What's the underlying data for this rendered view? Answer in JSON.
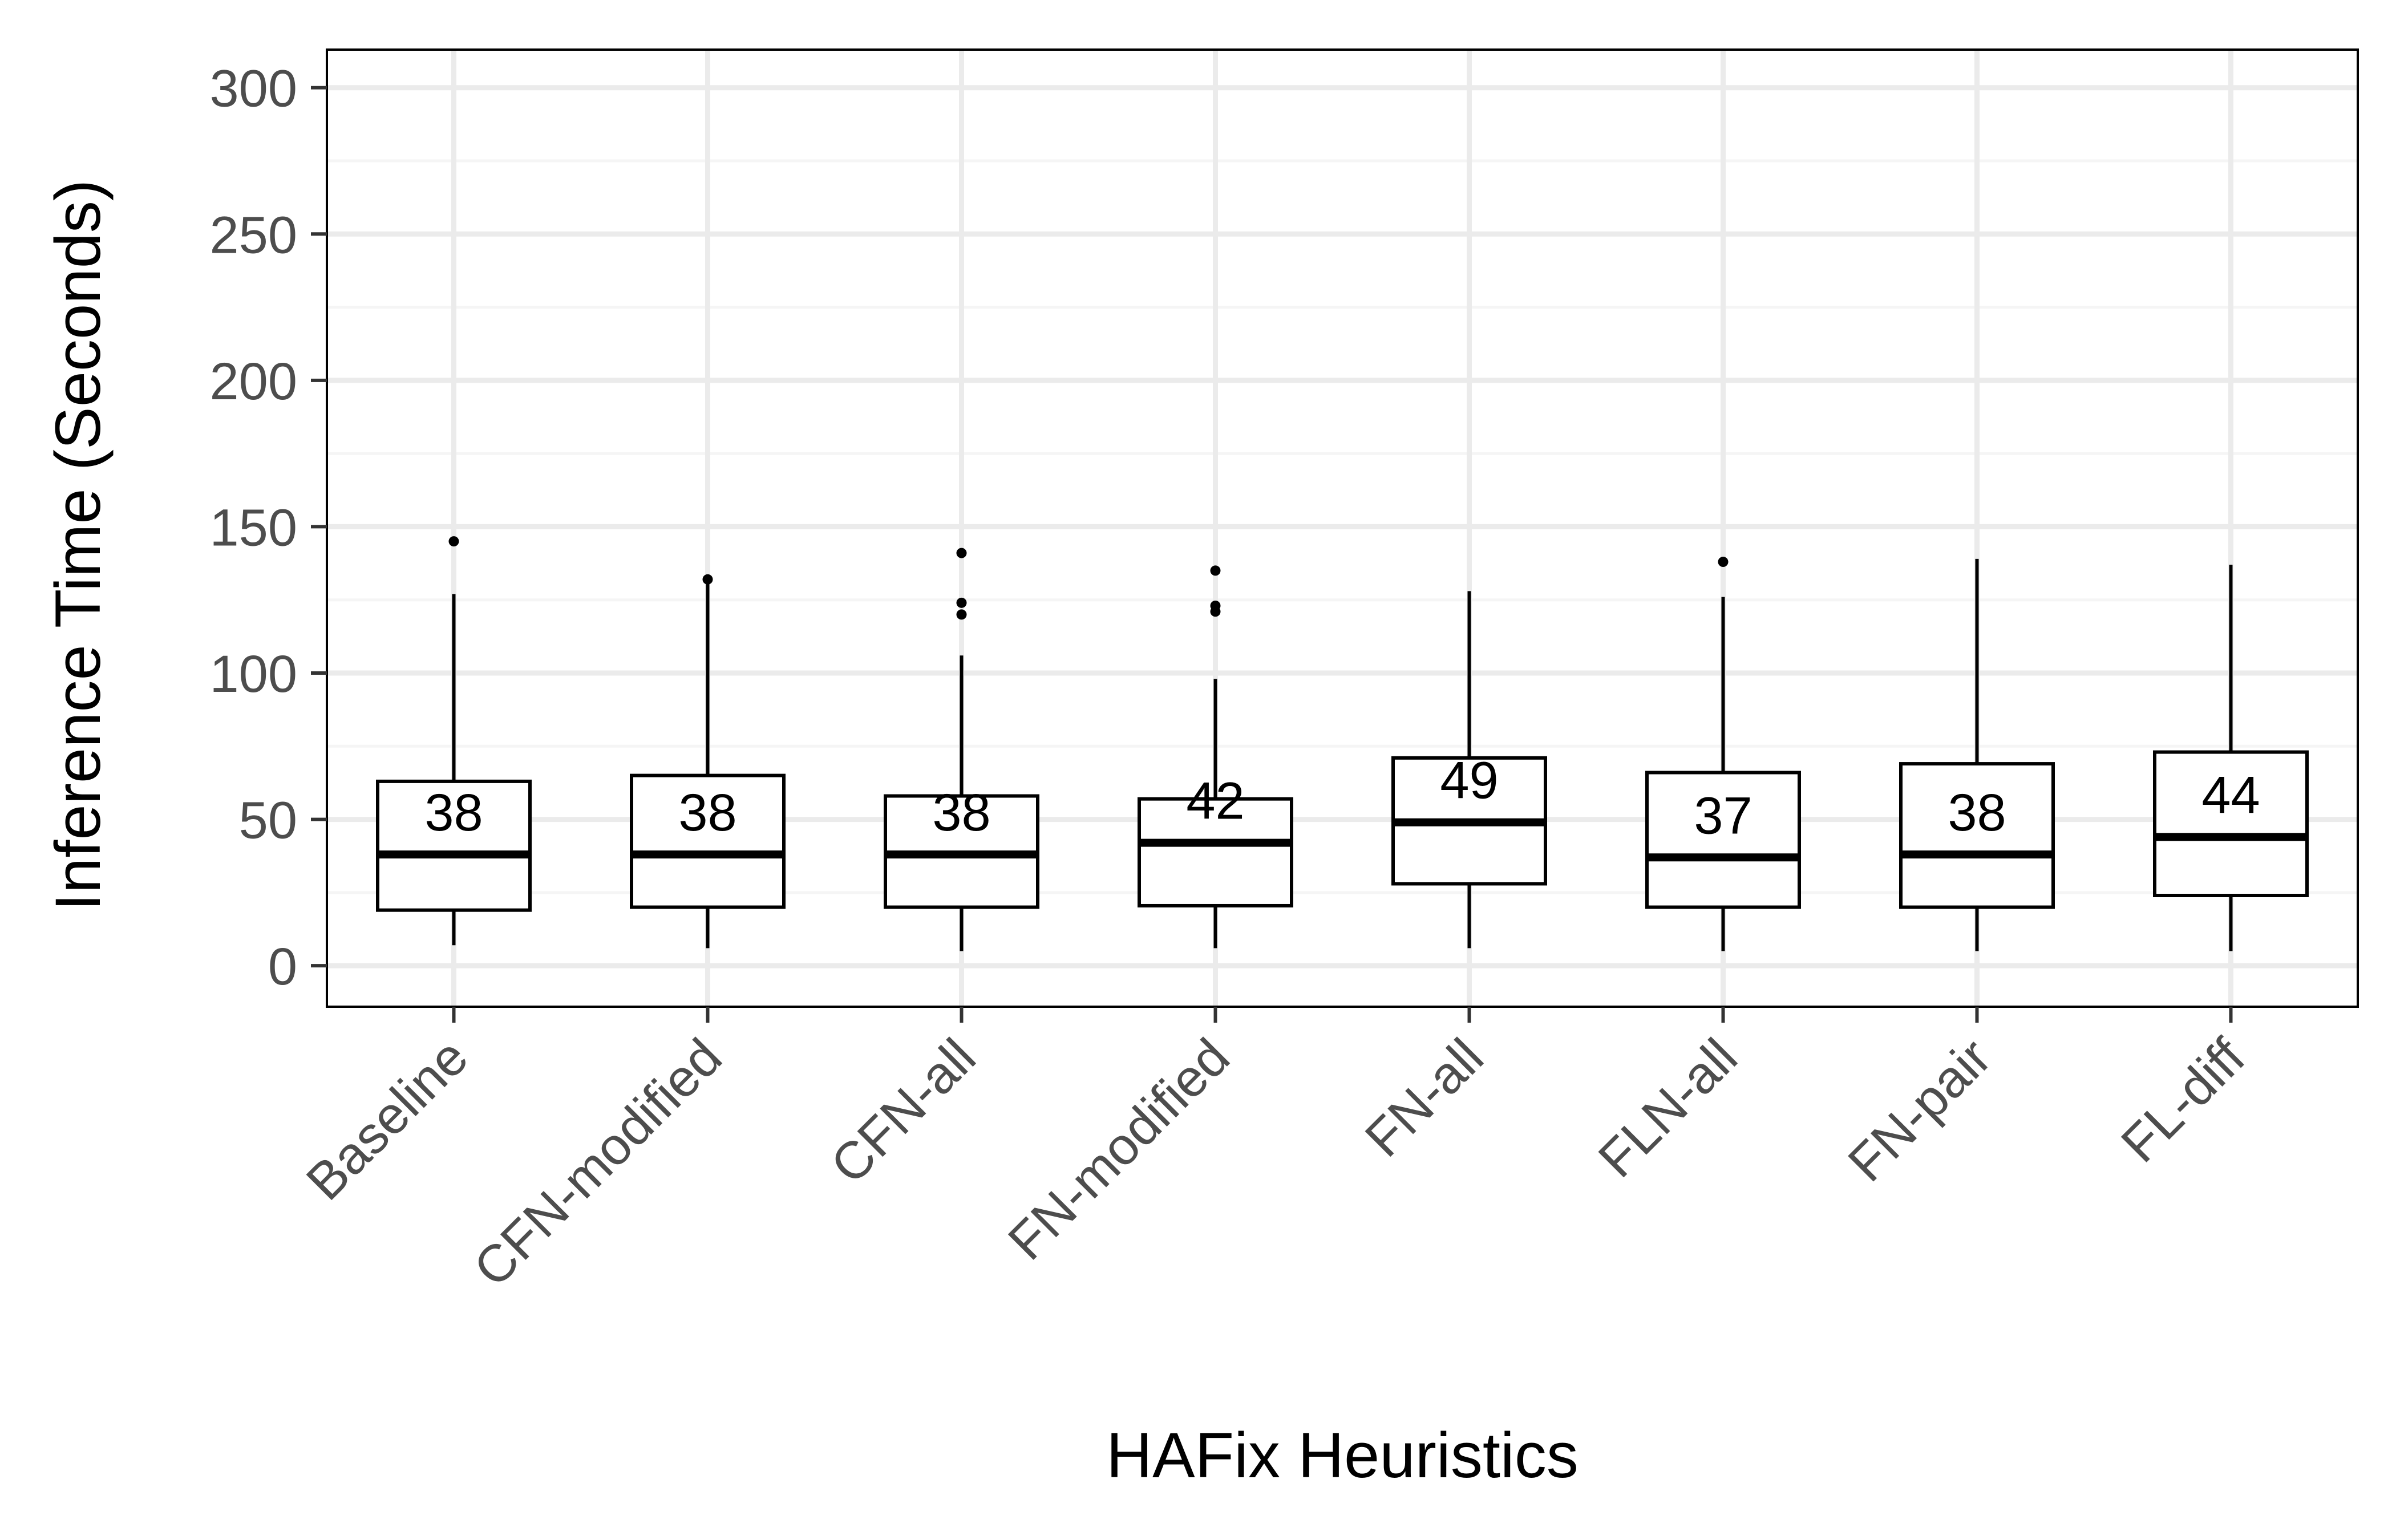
{
  "chart_data": {
    "type": "box",
    "title": "",
    "xlabel": "HAFix Heuristics",
    "ylabel": "Inference Time (Seconds)",
    "ylim": [
      -14,
      313
    ],
    "yticks": [
      0,
      50,
      100,
      150,
      200,
      250,
      300
    ],
    "y_minor_ticks": [
      25,
      75,
      125,
      175,
      225,
      275
    ],
    "grid": true,
    "legend": "none",
    "categories": [
      "Baseline",
      "CFN-modified",
      "CFN-all",
      "FN-modified",
      "FN-all",
      "FLN-all",
      "FN-pair",
      "FL-diff"
    ],
    "boxes": [
      {
        "category": "Baseline",
        "whisker_low": 7,
        "q1": 19,
        "median": 38,
        "q3": 63,
        "whisker_high": 127,
        "outliers": [
          145
        ],
        "median_label": "38"
      },
      {
        "category": "CFN-modified",
        "whisker_low": 6,
        "q1": 20,
        "median": 38,
        "q3": 65,
        "whisker_high": 132,
        "outliers": [
          132
        ],
        "median_label": "38"
      },
      {
        "category": "CFN-all",
        "whisker_low": 5,
        "q1": 20,
        "median": 38,
        "q3": 58,
        "whisker_high": 106,
        "outliers": [
          120,
          124,
          141
        ],
        "median_label": "38"
      },
      {
        "category": "FN-modified",
        "whisker_low": 6,
        "q1": 20.5,
        "median": 42,
        "q3": 57,
        "whisker_high": 98,
        "outliers": [
          121,
          123,
          135
        ],
        "median_label": "42"
      },
      {
        "category": "FN-all",
        "whisker_low": 6,
        "q1": 28,
        "median": 49,
        "q3": 71,
        "whisker_high": 128,
        "outliers": [],
        "median_label": "49"
      },
      {
        "category": "FLN-all",
        "whisker_low": 5,
        "q1": 20,
        "median": 37,
        "q3": 66,
        "whisker_high": 126,
        "outliers": [
          138
        ],
        "median_label": "37"
      },
      {
        "category": "FN-pair",
        "whisker_low": 5,
        "q1": 20,
        "median": 38,
        "q3": 69,
        "whisker_high": 139,
        "outliers": [],
        "median_label": "38"
      },
      {
        "category": "FL-diff",
        "whisker_low": 5,
        "q1": 24,
        "median": 44,
        "q3": 73,
        "whisker_high": 137,
        "outliers": [],
        "median_label": "44"
      }
    ],
    "colors": {
      "panel_background": "#ffffff",
      "grid_major": "#ebebeb",
      "grid_minor": "#f5f5f5",
      "panel_border": "#000000",
      "box_stroke": "#000000",
      "tick_text": "#4d4d4d"
    }
  }
}
